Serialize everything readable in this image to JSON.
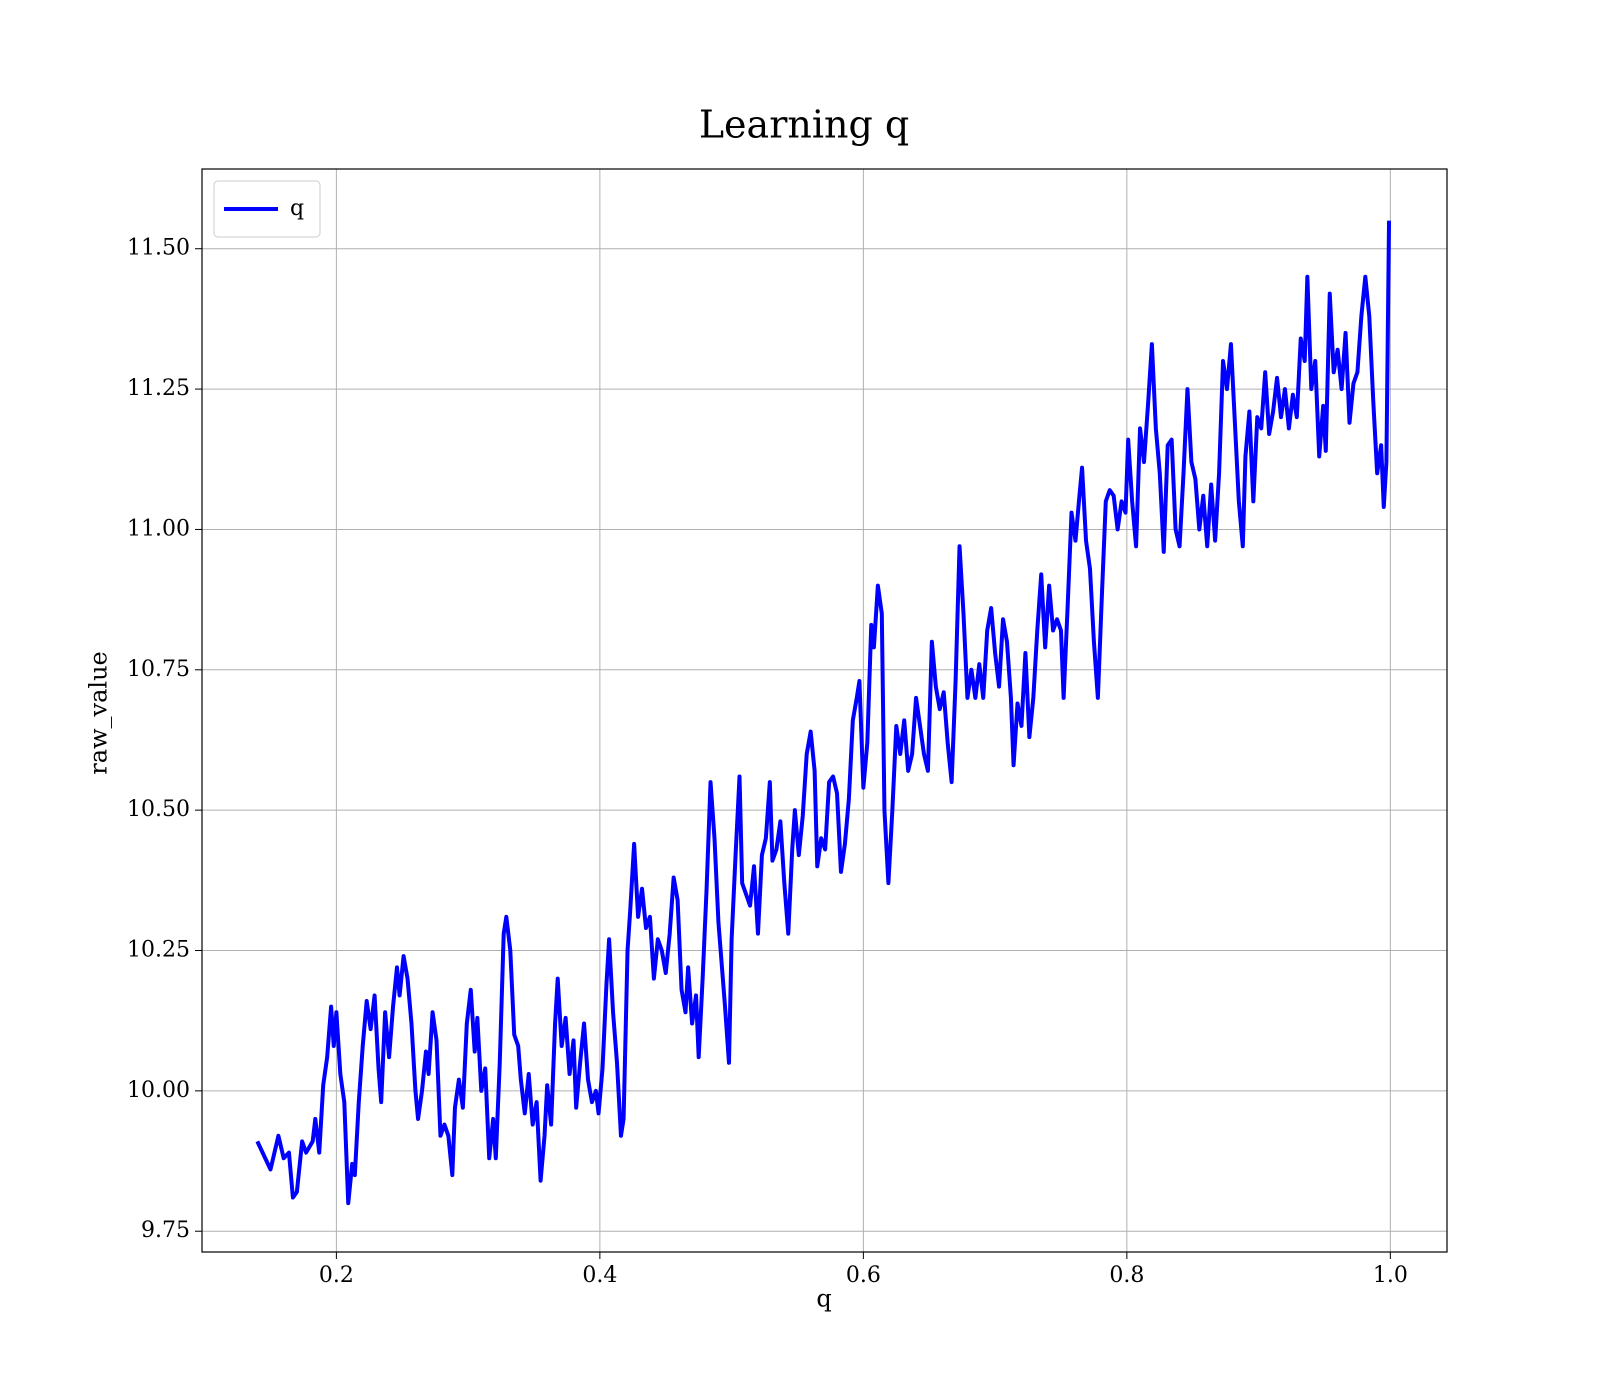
{
  "chart_data": {
    "type": "line",
    "title": "Learning q",
    "xlabel": "q",
    "ylabel": "raw_value",
    "x": [
      0.14,
      0.15,
      0.156,
      0.16,
      0.164,
      0.167,
      0.17,
      0.174,
      0.177,
      0.182,
      0.184,
      0.187,
      0.19,
      0.193,
      0.196,
      0.198,
      0.2,
      0.203,
      0.206,
      0.209,
      0.212,
      0.214,
      0.217,
      0.22,
      0.223,
      0.226,
      0.229,
      0.232,
      0.234,
      0.237,
      0.24,
      0.243,
      0.246,
      0.248,
      0.251,
      0.254,
      0.257,
      0.26,
      0.262,
      0.265,
      0.268,
      0.27,
      0.273,
      0.276,
      0.279,
      0.282,
      0.285,
      0.288,
      0.29,
      0.293,
      0.296,
      0.299,
      0.302,
      0.305,
      0.307,
      0.31,
      0.313,
      0.316,
      0.319,
      0.321,
      0.324,
      0.327,
      0.329,
      0.332,
      0.335,
      0.338,
      0.34,
      0.343,
      0.346,
      0.349,
      0.352,
      0.355,
      0.358,
      0.36,
      0.363,
      0.366,
      0.368,
      0.371,
      0.374,
      0.377,
      0.38,
      0.382,
      0.385,
      0.388,
      0.391,
      0.394,
      0.397,
      0.399,
      0.402,
      0.405,
      0.407,
      0.41,
      0.413,
      0.416,
      0.418,
      0.421,
      0.423,
      0.426,
      0.429,
      0.432,
      0.435,
      0.438,
      0.441,
      0.444,
      0.447,
      0.45,
      0.453,
      0.456,
      0.459,
      0.462,
      0.465,
      0.467,
      0.47,
      0.473,
      0.475,
      0.478,
      0.481,
      0.484,
      0.487,
      0.49,
      0.492,
      0.495,
      0.498,
      0.5,
      0.503,
      0.506,
      0.508,
      0.511,
      0.514,
      0.517,
      0.52,
      0.523,
      0.526,
      0.529,
      0.531,
      0.534,
      0.537,
      0.54,
      0.543,
      0.546,
      0.548,
      0.551,
      0.554,
      0.557,
      0.56,
      0.563,
      0.565,
      0.568,
      0.571,
      0.574,
      0.577,
      0.58,
      0.583,
      0.586,
      0.589,
      0.592,
      0.595,
      0.597,
      0.6,
      0.603,
      0.606,
      0.608,
      0.611,
      0.614,
      0.616,
      0.619,
      0.622,
      0.625,
      0.628,
      0.631,
      0.634,
      0.637,
      0.64,
      0.643,
      0.646,
      0.649,
      0.652,
      0.655,
      0.658,
      0.661,
      0.664,
      0.667,
      0.67,
      0.673,
      0.676,
      0.679,
      0.682,
      0.685,
      0.688,
      0.691,
      0.694,
      0.697,
      0.7,
      0.703,
      0.706,
      0.709,
      0.712,
      0.714,
      0.717,
      0.72,
      0.723,
      0.726,
      0.729,
      0.732,
      0.735,
      0.738,
      0.741,
      0.744,
      0.747,
      0.75,
      0.752,
      0.755,
      0.758,
      0.761,
      0.764,
      0.766,
      0.769,
      0.772,
      0.775,
      0.778,
      0.781,
      0.784,
      0.787,
      0.79,
      0.793,
      0.796,
      0.799,
      0.801,
      0.804,
      0.807,
      0.81,
      0.813,
      0.816,
      0.819,
      0.822,
      0.825,
      0.828,
      0.831,
      0.834,
      0.837,
      0.84,
      0.843,
      0.846,
      0.849,
      0.852,
      0.855,
      0.858,
      0.861,
      0.864,
      0.867,
      0.87,
      0.873,
      0.876,
      0.879,
      0.882,
      0.885,
      0.888,
      0.89,
      0.893,
      0.896,
      0.899,
      0.902,
      0.905,
      0.908,
      0.911,
      0.914,
      0.917,
      0.92,
      0.923,
      0.926,
      0.929,
      0.932,
      0.935,
      0.937,
      0.94,
      0.943,
      0.946,
      0.949,
      0.951,
      0.954,
      0.957,
      0.96,
      0.963,
      0.966,
      0.969,
      0.972,
      0.975,
      0.978,
      0.981,
      0.984,
      0.987,
      0.99,
      0.993,
      0.995,
      0.997,
      0.999
    ],
    "series": [
      {
        "name": "q",
        "color": "#0000ff",
        "values": [
          9.91,
          9.86,
          9.92,
          9.88,
          9.89,
          9.81,
          9.82,
          9.91,
          9.89,
          9.91,
          9.95,
          9.89,
          10.01,
          10.06,
          10.15,
          10.08,
          10.14,
          10.03,
          9.98,
          9.8,
          9.87,
          9.85,
          9.98,
          10.08,
          10.16,
          10.11,
          10.17,
          10.04,
          9.98,
          10.14,
          10.06,
          10.15,
          10.22,
          10.17,
          10.24,
          10.2,
          10.12,
          10.0,
          9.95,
          10.0,
          10.07,
          10.03,
          10.14,
          10.09,
          9.92,
          9.94,
          9.92,
          9.85,
          9.97,
          10.02,
          9.97,
          10.12,
          10.18,
          10.07,
          10.13,
          10.0,
          10.04,
          9.88,
          9.95,
          9.88,
          10.05,
          10.28,
          10.31,
          10.25,
          10.1,
          10.08,
          10.02,
          9.96,
          10.03,
          9.94,
          9.98,
          9.84,
          9.92,
          10.01,
          9.94,
          10.12,
          10.2,
          10.08,
          10.13,
          10.03,
          10.09,
          9.97,
          10.05,
          10.12,
          10.02,
          9.98,
          10.0,
          9.96,
          10.04,
          10.19,
          10.27,
          10.14,
          10.05,
          9.92,
          9.95,
          10.25,
          10.32,
          10.44,
          10.31,
          10.36,
          10.29,
          10.31,
          10.2,
          10.27,
          10.25,
          10.21,
          10.28,
          10.38,
          10.34,
          10.18,
          10.14,
          10.22,
          10.12,
          10.17,
          10.06,
          10.2,
          10.36,
          10.55,
          10.45,
          10.3,
          10.24,
          10.15,
          10.05,
          10.27,
          10.42,
          10.56,
          10.37,
          10.35,
          10.33,
          10.4,
          10.28,
          10.42,
          10.45,
          10.55,
          10.41,
          10.43,
          10.48,
          10.37,
          10.28,
          10.43,
          10.5,
          10.42,
          10.49,
          10.6,
          10.64,
          10.57,
          10.4,
          10.45,
          10.43,
          10.55,
          10.56,
          10.53,
          10.39,
          10.44,
          10.52,
          10.66,
          10.7,
          10.73,
          10.54,
          10.62,
          10.83,
          10.79,
          10.9,
          10.85,
          10.5,
          10.37,
          10.5,
          10.65,
          10.6,
          10.66,
          10.57,
          10.6,
          10.7,
          10.65,
          10.6,
          10.57,
          10.8,
          10.72,
          10.68,
          10.71,
          10.62,
          10.55,
          10.73,
          10.97,
          10.85,
          10.7,
          10.75,
          10.7,
          10.76,
          10.7,
          10.82,
          10.86,
          10.78,
          10.72,
          10.84,
          10.8,
          10.7,
          10.58,
          10.69,
          10.65,
          10.78,
          10.63,
          10.7,
          10.82,
          10.92,
          10.79,
          10.9,
          10.82,
          10.84,
          10.82,
          10.7,
          10.86,
          11.03,
          10.98,
          11.06,
          11.11,
          10.98,
          10.93,
          10.8,
          10.7,
          10.88,
          11.05,
          11.07,
          11.06,
          11.0,
          11.05,
          11.03,
          11.16,
          11.05,
          10.97,
          11.18,
          11.12,
          11.22,
          11.33,
          11.18,
          11.1,
          10.96,
          11.15,
          11.16,
          11.0,
          10.97,
          11.1,
          11.25,
          11.12,
          11.09,
          11.0,
          11.06,
          10.97,
          11.08,
          10.98,
          11.1,
          11.3,
          11.25,
          11.33,
          11.19,
          11.05,
          10.97,
          11.13,
          11.21,
          11.05,
          11.2,
          11.18,
          11.28,
          11.17,
          11.21,
          11.27,
          11.2,
          11.25,
          11.18,
          11.24,
          11.2,
          11.34,
          11.3,
          11.45,
          11.25,
          11.3,
          11.13,
          11.22,
          11.14,
          11.42,
          11.28,
          11.32,
          11.25,
          11.35,
          11.19,
          11.26,
          11.28,
          11.38,
          11.45,
          11.38,
          11.23,
          11.1,
          11.15,
          11.04,
          11.12,
          11.55
        ]
      }
    ],
    "xlim": [
      0.098,
      1.043
    ],
    "ylim": [
      9.713,
      11.642
    ],
    "xticks": [
      0.2,
      0.4,
      0.6,
      0.8,
      {
        "value": 1,
        "label": "1.0"
      }
    ],
    "yticks": [
      9.75,
      {
        "value": 10,
        "label": "10.00"
      },
      10.25,
      {
        "value": 10.5,
        "label": "10.50"
      },
      10.75,
      {
        "value": 11,
        "label": "11.00"
      },
      11.25,
      {
        "value": 11.5,
        "label": "11.50"
      }
    ],
    "grid": true,
    "legend": "upper left"
  }
}
